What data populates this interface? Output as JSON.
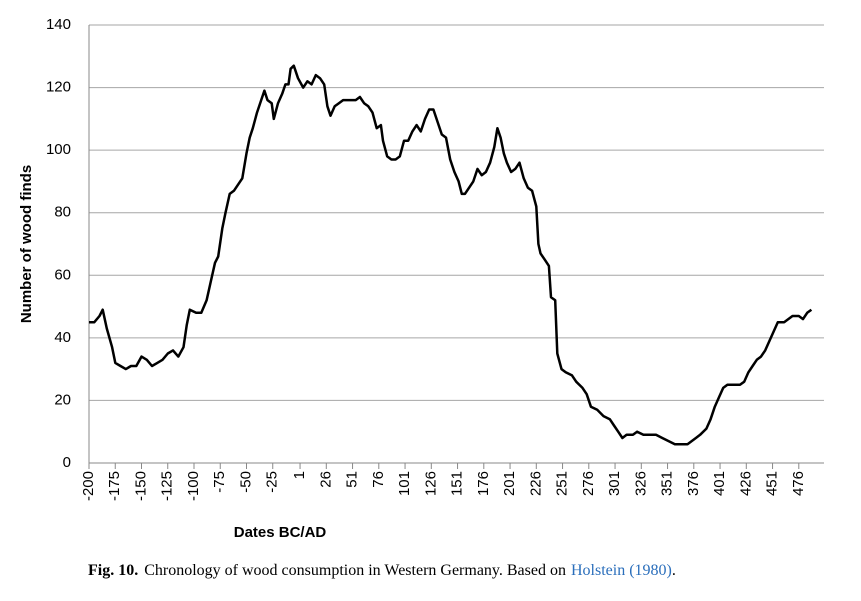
{
  "chart_data": {
    "type": "line",
    "y_label": "Number of wood finds",
    "x_label": "Dates BC/AD",
    "color": "#000000",
    "grid": true,
    "xlim": [
      -200,
      500
    ],
    "ylim": [
      0,
      140
    ],
    "xticks": [
      -200,
      -175,
      -150,
      -125,
      -100,
      -75,
      -50,
      -25,
      1,
      26,
      51,
      76,
      101,
      126,
      151,
      176,
      201,
      226,
      251,
      276,
      301,
      326,
      351,
      376,
      401,
      426,
      451,
      476
    ],
    "yticks": [
      0,
      20,
      40,
      60,
      80,
      100,
      120,
      140
    ],
    "x": [
      -200,
      -195,
      -190,
      -187,
      -183,
      -178,
      -175,
      -170,
      -165,
      -160,
      -155,
      -150,
      -145,
      -140,
      -135,
      -130,
      -125,
      -120,
      -115,
      -110,
      -107,
      -104,
      -98,
      -93,
      -88,
      -84,
      -80,
      -77,
      -73,
      -70,
      -66,
      -62,
      -58,
      -54,
      -50,
      -47,
      -44,
      -40,
      -36,
      -33,
      -30,
      -26,
      -24,
      -20,
      -16,
      -13,
      -10,
      -8,
      -5,
      -1,
      4,
      8,
      12,
      16,
      20,
      24,
      27,
      30,
      34,
      38,
      42,
      46,
      50,
      54,
      58,
      62,
      66,
      70,
      74,
      78,
      80,
      84,
      88,
      92,
      96,
      100,
      104,
      108,
      112,
      116,
      120,
      124,
      128,
      132,
      136,
      140,
      144,
      148,
      152,
      155,
      158,
      162,
      166,
      170,
      174,
      178,
      182,
      186,
      189,
      192,
      195,
      198,
      202,
      206,
      210,
      214,
      218,
      222,
      226,
      228,
      230,
      234,
      238,
      240,
      244,
      246,
      250,
      254,
      260,
      264,
      270,
      274,
      278,
      284,
      290,
      296,
      300,
      304,
      308,
      312,
      318,
      322,
      328,
      334,
      340,
      346,
      352,
      358,
      364,
      370,
      374,
      378,
      382,
      388,
      392,
      396,
      400,
      404,
      408,
      414,
      420,
      424,
      428,
      432,
      436,
      440,
      444,
      448,
      452,
      456,
      462,
      466,
      470,
      476,
      480,
      484,
      488
    ],
    "values": [
      45,
      45,
      47,
      49,
      43,
      37,
      32,
      31,
      30,
      31,
      31,
      34,
      33,
      31,
      32,
      33,
      35,
      36,
      34,
      37,
      44,
      49,
      48,
      48,
      52,
      58,
      64,
      66,
      75,
      80,
      86,
      87,
      89,
      91,
      99,
      104,
      107,
      112,
      116,
      119,
      116,
      115,
      110,
      115,
      118,
      121,
      121,
      126,
      127,
      123,
      120,
      122,
      121,
      124,
      123,
      121,
      114,
      111,
      114,
      115,
      116,
      116,
      116,
      116,
      117,
      115,
      114,
      112,
      107,
      108,
      103,
      98,
      97,
      97,
      98,
      103,
      103,
      106,
      108,
      106,
      110,
      113,
      113,
      109,
      105,
      104,
      97,
      93,
      90,
      86,
      86,
      88,
      90,
      94,
      92,
      93,
      96,
      101,
      107,
      104,
      99,
      96,
      93,
      94,
      96,
      91,
      88,
      87,
      82,
      70,
      67,
      65,
      63,
      53,
      52,
      35,
      30,
      29,
      28,
      26,
      24,
      22,
      18,
      17,
      15,
      14,
      12,
      10,
      8,
      9,
      9,
      10,
      9,
      9,
      9,
      8,
      7,
      6,
      6,
      6,
      7,
      8,
      9,
      11,
      14,
      18,
      21,
      24,
      25,
      25,
      25,
      26,
      29,
      31,
      33,
      34,
      36,
      39,
      42,
      45,
      45,
      46,
      47,
      47,
      46,
      48,
      49
    ]
  },
  "caption": {
    "label": "Fig. 10.",
    "text": "Chronology of wood consumption in Western Germany. Based on",
    "link": "Holstein (1980)",
    "end": "."
  }
}
